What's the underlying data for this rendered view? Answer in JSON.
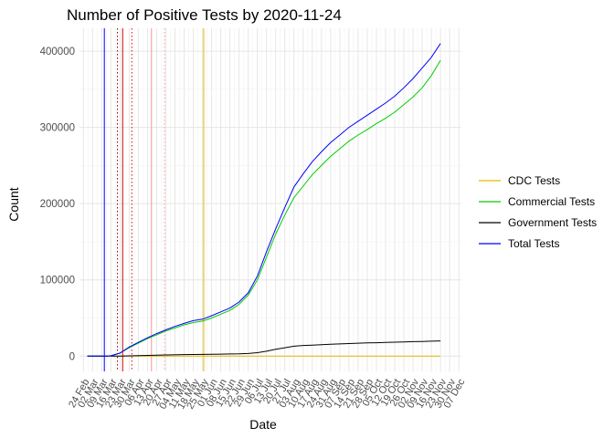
{
  "chart_data": {
    "type": "line",
    "title": "Number of Positive Tests by  2020-11-24",
    "xlabel": "Date",
    "ylabel": "Count",
    "x_tick_labels": [
      "24 Feb",
      "02 Mar",
      "09 Mar",
      "16 Mar",
      "23 Mar",
      "30 Mar",
      "06 Apr",
      "13 Apr",
      "20 Apr",
      "27 Apr",
      "04 May",
      "11 May",
      "18 May",
      "25 May",
      "01 Jun",
      "08 Jun",
      "15 Jun",
      "22 Jun",
      "29 Jun",
      "06 Jul",
      "13 Jul",
      "20 Jul",
      "27 Jul",
      "03 Aug",
      "10 Aug",
      "17 Aug",
      "24 Aug",
      "31 Aug",
      "07 Sep",
      "14 Sep",
      "21 Sep",
      "28 Sep",
      "05 Oct",
      "12 Oct",
      "19 Oct",
      "26 Oct",
      "02 Nov",
      "09 Nov",
      "16 Nov",
      "23 Nov",
      "30 Nov",
      "07 Dec"
    ],
    "x_tick_days": [
      0,
      7,
      14,
      21,
      28,
      35,
      42,
      49,
      56,
      63,
      70,
      77,
      84,
      91,
      98,
      105,
      112,
      119,
      126,
      133,
      140,
      147,
      154,
      161,
      168,
      175,
      182,
      189,
      196,
      203,
      210,
      217,
      224,
      231,
      238,
      245,
      252,
      259,
      266,
      273,
      280,
      287
    ],
    "x_range_days": [
      -3,
      289
    ],
    "y_ticks": [
      0,
      100000,
      200000,
      300000,
      400000
    ],
    "y_tick_labels": [
      "0",
      "100000",
      "200000",
      "300000",
      "400000"
    ],
    "y_range": [
      -20000,
      430000
    ],
    "x_unit": "days since 24 Feb 2020",
    "series": [
      {
        "name": "CDC Tests",
        "color": "#e6b800",
        "x": [
          3,
          273
        ],
        "y": [
          0,
          0
        ]
      },
      {
        "name": "Commercial Tests",
        "color": "#00cc00",
        "x": [
          3,
          17,
          21,
          28,
          35,
          42,
          49,
          56,
          63,
          70,
          77,
          84,
          91,
          98,
          105,
          112,
          119,
          126,
          133,
          140,
          147,
          154,
          161,
          168,
          175,
          182,
          189,
          196,
          203,
          210,
          217,
          224,
          231,
          238,
          245,
          252,
          259,
          266,
          273
        ],
        "y": [
          0,
          0,
          500,
          4000,
          11000,
          17000,
          23000,
          28000,
          33000,
          37000,
          41000,
          44000,
          46000,
          50000,
          55000,
          60000,
          68000,
          80000,
          100000,
          130000,
          160000,
          185000,
          208000,
          223000,
          238000,
          250000,
          262000,
          272000,
          282000,
          290000,
          297000,
          305000,
          312000,
          320000,
          330000,
          340000,
          352000,
          368000,
          388000
        ]
      },
      {
        "name": "Government Tests",
        "color": "#000000",
        "x": [
          3,
          28,
          35,
          49,
          63,
          77,
          91,
          105,
          112,
          119,
          126,
          133,
          140,
          147,
          154,
          161,
          168,
          175,
          182,
          189,
          196,
          203,
          210,
          217,
          224,
          231,
          238,
          245,
          252,
          259,
          266,
          273
        ],
        "y": [
          0,
          0,
          300,
          900,
          1500,
          2000,
          2300,
          2600,
          2800,
          3000,
          3500,
          4500,
          6500,
          9000,
          11000,
          13000,
          14000,
          14500,
          15000,
          15500,
          16000,
          16500,
          17000,
          17300,
          17600,
          18000,
          18300,
          18700,
          19000,
          19300,
          19600,
          20000
        ]
      },
      {
        "name": "Total Tests",
        "color": "#0000ff",
        "x": [
          3,
          17,
          21,
          28,
          35,
          42,
          49,
          56,
          63,
          70,
          77,
          84,
          91,
          98,
          105,
          112,
          119,
          126,
          133,
          140,
          147,
          154,
          161,
          168,
          175,
          182,
          189,
          196,
          203,
          210,
          217,
          224,
          231,
          238,
          245,
          252,
          259,
          266,
          273
        ],
        "y": [
          0,
          0,
          500,
          4000,
          12000,
          18000,
          24000,
          29500,
          34500,
          39000,
          43000,
          46500,
          48500,
          53000,
          58000,
          63000,
          71000,
          83000,
          105000,
          137000,
          167000,
          195000,
          222000,
          239000,
          255000,
          268000,
          280000,
          290000,
          300000,
          308000,
          316000,
          324000,
          332000,
          341000,
          352000,
          364000,
          378000,
          392000,
          410000
        ]
      }
    ],
    "reference_lines": [
      {
        "day": 16,
        "color": "#0000ff",
        "style": "solid"
      },
      {
        "day": 26,
        "color": "#8b0000",
        "style": "dotted"
      },
      {
        "day": 30,
        "color": "#cc0000",
        "style": "solid"
      },
      {
        "day": 37,
        "color": "#cc0000",
        "style": "dotted"
      },
      {
        "day": 52,
        "color": "#ff9999",
        "style": "solid"
      },
      {
        "day": 62,
        "color": "#ff9999",
        "style": "dotted"
      },
      {
        "day": 92,
        "color": "#e6b800",
        "style": "solid"
      }
    ],
    "legend_position": "right",
    "grid": true
  }
}
